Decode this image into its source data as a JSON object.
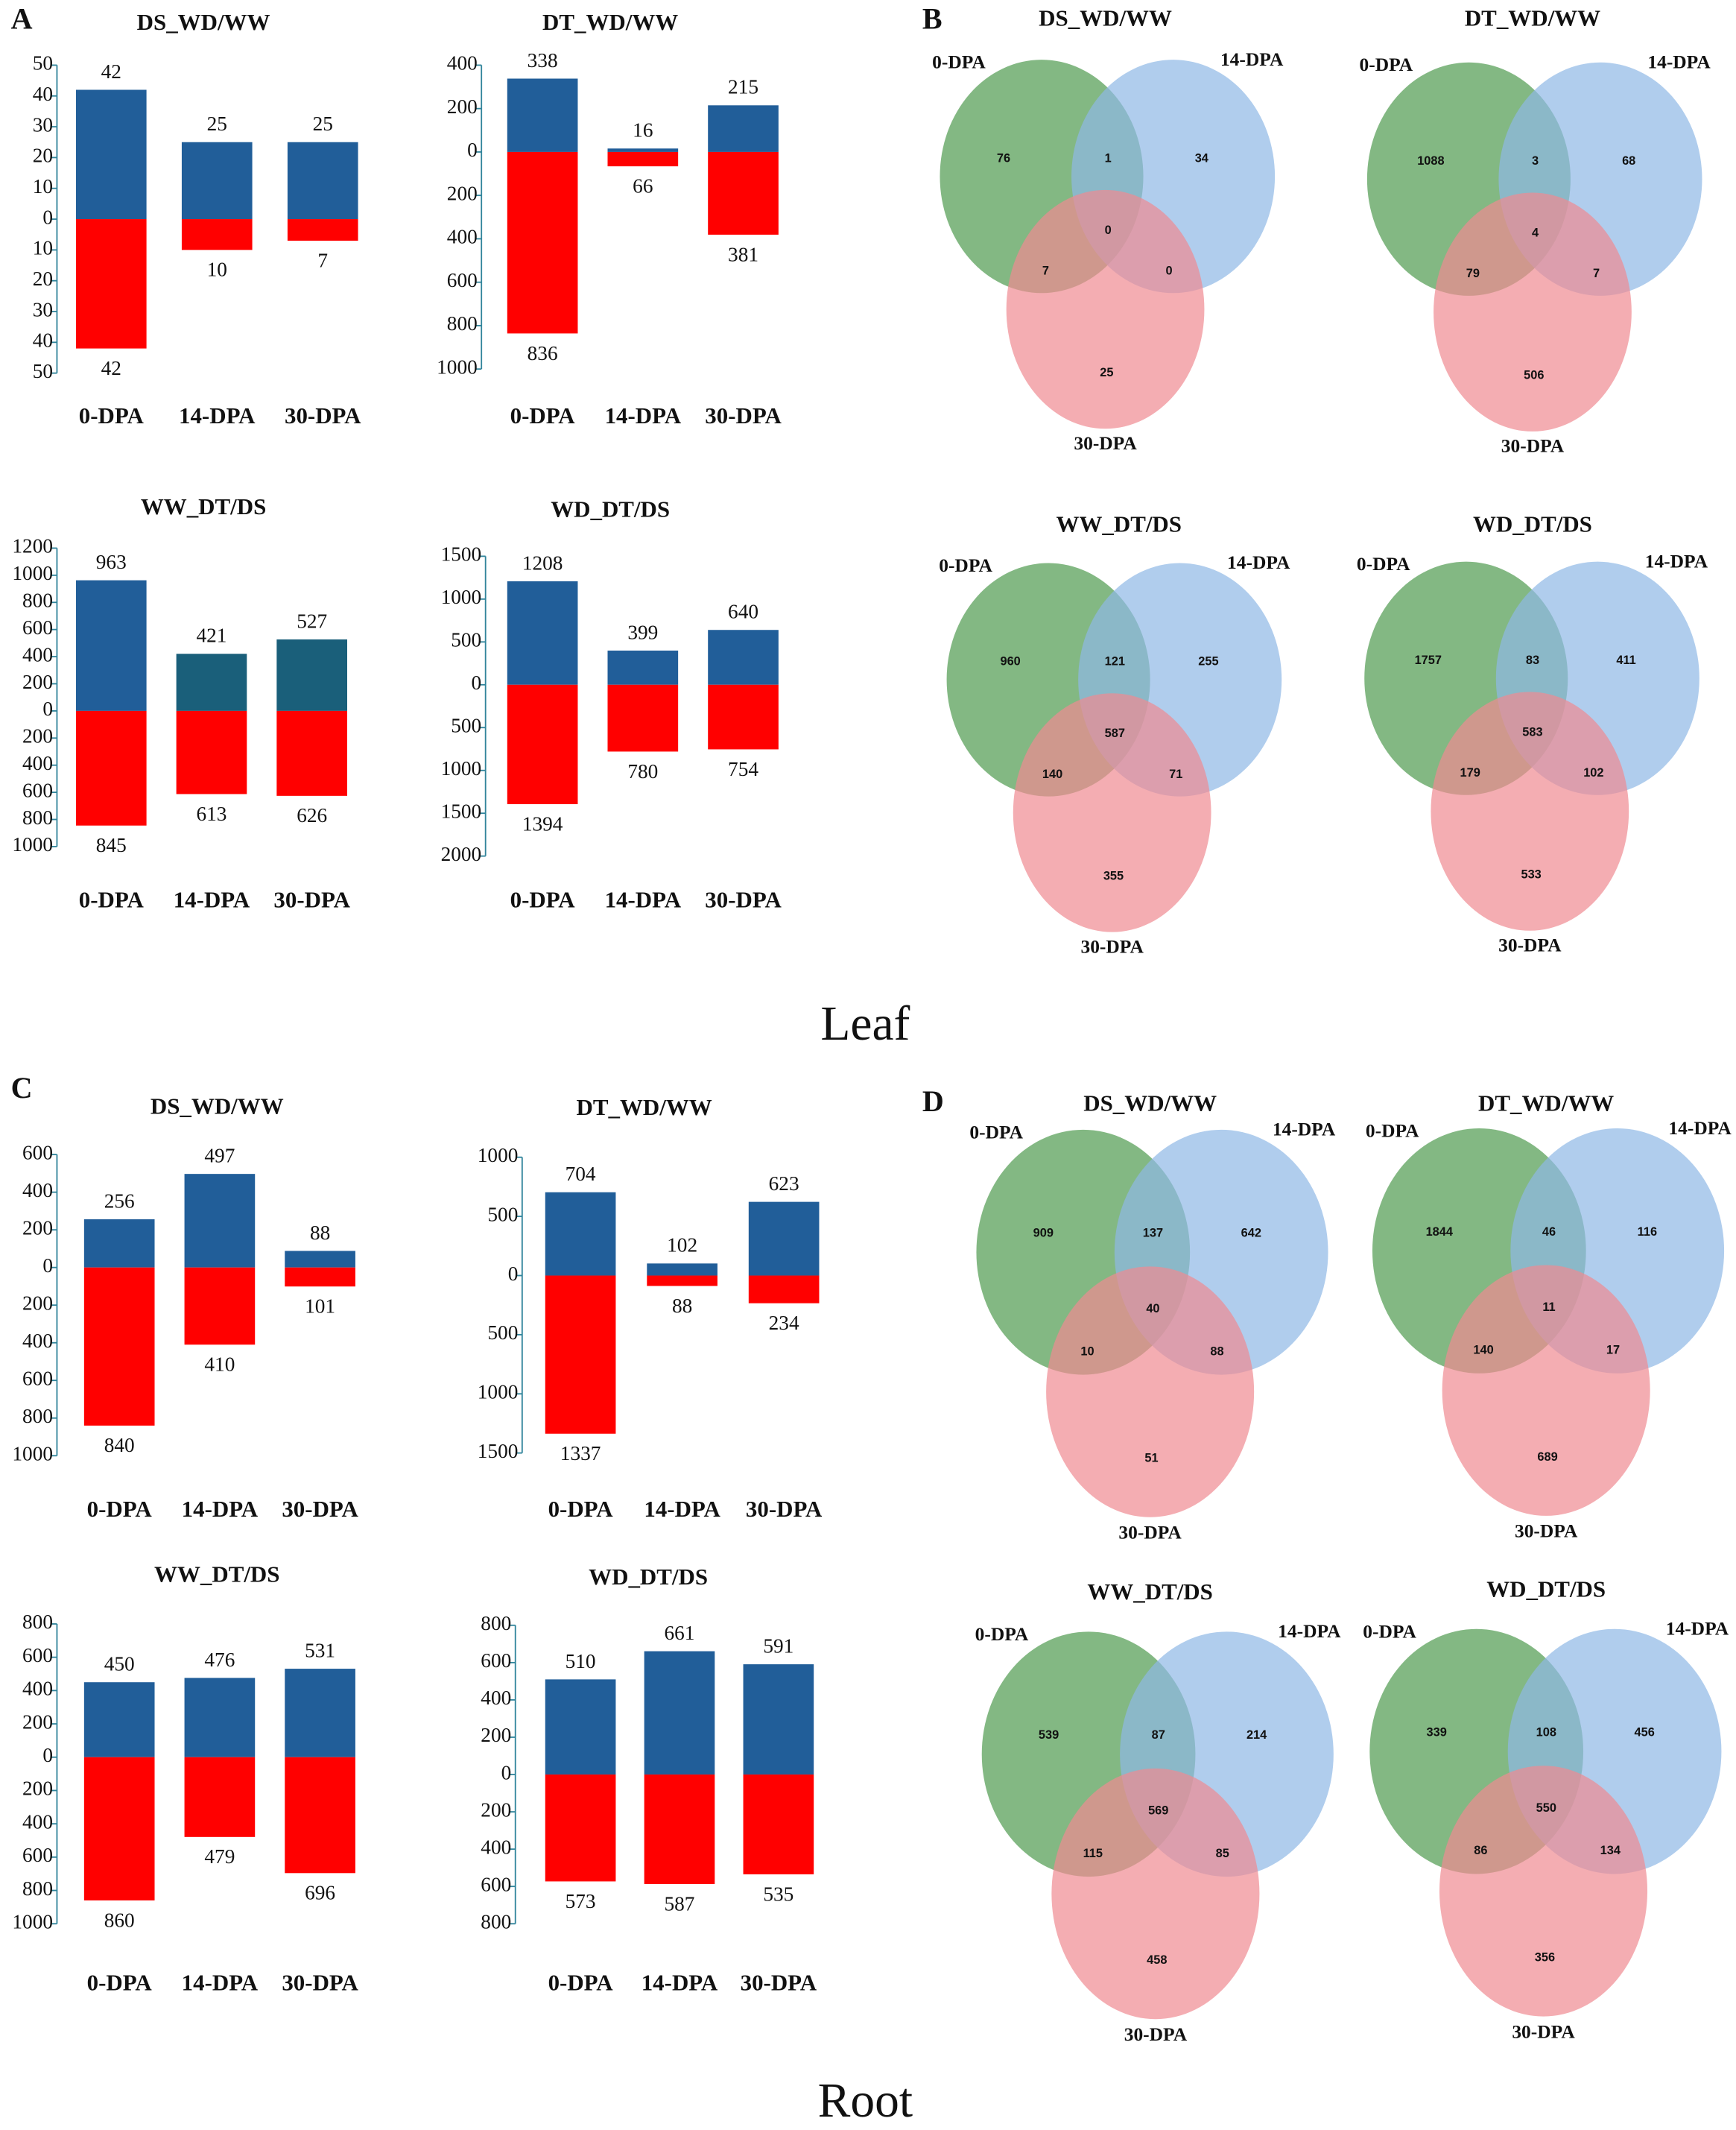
{
  "figure": {
    "panel_labels": [
      "A",
      "B",
      "C",
      "D"
    ],
    "tissue_labels": [
      "Leaf",
      "Root"
    ]
  },
  "chart_data": [
    {
      "type": "bar",
      "title": "DS_WD/WW",
      "categories": [
        "0-DPA",
        "14-DPA",
        "30-DPA"
      ],
      "series": [
        {
          "color": "#215e99",
          "values": [
            42,
            25,
            25
          ]
        },
        {
          "color": "#ff0000",
          "values": [
            -42,
            -10,
            -7
          ],
          "value_labels": [
            "42",
            "10",
            "7"
          ]
        }
      ],
      "ylim": [
        -50,
        50
      ],
      "yticks": [
        {
          "value": -50,
          "label": "50"
        },
        {
          "value": -40,
          "label": "40"
        },
        {
          "value": -30,
          "label": "30"
        },
        {
          "value": -20,
          "label": "20"
        },
        {
          "value": -10,
          "label": "10"
        },
        0,
        10,
        20,
        30,
        40,
        50
      ]
    },
    {
      "type": "bar",
      "title": "DT_WD/WW",
      "categories": [
        "0-DPA",
        "14-DPA",
        "30-DPA"
      ],
      "series": [
        {
          "color": "#215e99",
          "values": [
            338,
            16,
            215
          ]
        },
        {
          "color": "#ff0000",
          "values": [
            -836,
            -66,
            -381
          ],
          "value_labels": [
            "836",
            "66",
            "381"
          ]
        }
      ],
      "ylim": [
        -1000,
        400
      ],
      "yticks": [
        {
          "value": -1000,
          "label": "1000"
        },
        {
          "value": -800,
          "label": "800"
        },
        {
          "value": -600,
          "label": "600"
        },
        {
          "value": -400,
          "label": "400"
        },
        {
          "value": -200,
          "label": "200"
        },
        0,
        200,
        400
      ]
    },
    {
      "type": "bar",
      "title": "WW_DT/DS",
      "categories": [
        "0-DPA",
        "14-DPA",
        "30-DPA"
      ],
      "series": [
        {
          "colors": [
            "#215e99",
            "#1a5f7a",
            "#1a5f7a"
          ],
          "values": [
            963,
            421,
            527
          ]
        },
        {
          "color": "#ff0000",
          "values": [
            -845,
            -613,
            -626
          ],
          "value_labels": [
            "845",
            "613",
            "626"
          ]
        }
      ],
      "ylim": [
        -1000,
        1200
      ],
      "yticks": [
        {
          "value": -1000,
          "label": "1000"
        },
        {
          "value": -800,
          "label": "800"
        },
        {
          "value": -600,
          "label": "600"
        },
        {
          "value": -400,
          "label": "400"
        },
        {
          "value": -200,
          "label": "200"
        },
        0,
        200,
        400,
        600,
        800,
        1000,
        1200
      ]
    },
    {
      "type": "bar",
      "title": "WD_DT/DS",
      "categories": [
        "0-DPA",
        "14-DPA",
        "30-DPA"
      ],
      "series": [
        {
          "color": "#215e99",
          "values": [
            1208,
            399,
            640
          ]
        },
        {
          "color": "#ff0000",
          "values": [
            -1394,
            -780,
            -754
          ],
          "value_labels": [
            "1394",
            "780",
            "754"
          ]
        }
      ],
      "ylim": [
        -2000,
        1500
      ],
      "yticks": [
        {
          "value": -2000,
          "label": "2000"
        },
        {
          "value": -1500,
          "label": "1500"
        },
        {
          "value": -1000,
          "label": "1000"
        },
        {
          "value": -500,
          "label": "500"
        },
        0,
        500,
        1000,
        1500
      ]
    },
    {
      "type": "venn",
      "title": "DS_WD/WW",
      "sets": [
        "0-DPA",
        "14-DPA",
        "30-DPA"
      ],
      "colors": [
        "#4e9a4e",
        "#8fb8e6",
        "#f08a92"
      ],
      "values": [
        76,
        1,
        34,
        0,
        7,
        0,
        25
      ]
    },
    {
      "type": "venn",
      "title": "DT_WD/WW",
      "sets": [
        "0-DPA",
        "14-DPA",
        "30-DPA"
      ],
      "colors": [
        "#4e9a4e",
        "#8fb8e6",
        "#f08a92"
      ],
      "values": [
        1088,
        3,
        68,
        4,
        79,
        7,
        506
      ]
    },
    {
      "type": "venn",
      "title": "WW_DT/DS",
      "sets": [
        "0-DPA",
        "14-DPA",
        "30-DPA"
      ],
      "colors": [
        "#4e9a4e",
        "#8fb8e6",
        "#f08a92"
      ],
      "values": [
        960,
        121,
        255,
        587,
        140,
        71,
        355
      ]
    },
    {
      "type": "venn",
      "title": "WD_DT/DS",
      "sets": [
        "0-DPA",
        "14-DPA",
        "30-DPA"
      ],
      "colors": [
        "#4e9a4e",
        "#8fb8e6",
        "#f08a92"
      ],
      "values": [
        1757,
        83,
        411,
        583,
        179,
        102,
        533
      ]
    },
    {
      "type": "bar",
      "title": "DS_WD/WW",
      "categories": [
        "0-DPA",
        "14-DPA",
        "30-DPA"
      ],
      "series": [
        {
          "color": "#215e99",
          "values": [
            256,
            497,
            88
          ]
        },
        {
          "color": "#ff0000",
          "values": [
            -840,
            -410,
            -101
          ],
          "value_labels": [
            "840",
            "410",
            "101"
          ]
        }
      ],
      "ylim": [
        -1000,
        600
      ],
      "yticks": [
        {
          "value": -1000,
          "label": "1000"
        },
        {
          "value": -800,
          "label": "800"
        },
        {
          "value": -600,
          "label": "600"
        },
        {
          "value": -400,
          "label": "400"
        },
        {
          "value": -200,
          "label": "200"
        },
        0,
        200,
        400,
        600
      ]
    },
    {
      "type": "bar",
      "title": "DT_WD/WW",
      "categories": [
        "0-DPA",
        "14-DPA",
        "30-DPA"
      ],
      "series": [
        {
          "color": "#215e99",
          "values": [
            704,
            102,
            623
          ]
        },
        {
          "color": "#ff0000",
          "values": [
            -1337,
            -88,
            -234
          ],
          "value_labels": [
            "1337",
            "88",
            "234"
          ]
        }
      ],
      "ylim": [
        -1500,
        1000
      ],
      "yticks": [
        {
          "value": -1500,
          "label": "1500"
        },
        {
          "value": -1000,
          "label": "1000"
        },
        {
          "value": -500,
          "label": "500"
        },
        0,
        500,
        1000
      ]
    },
    {
      "type": "bar",
      "title": "WW_DT/DS",
      "categories": [
        "0-DPA",
        "14-DPA",
        "30-DPA"
      ],
      "series": [
        {
          "color": "#215e99",
          "values": [
            450,
            476,
            531
          ]
        },
        {
          "color": "#ff0000",
          "values": [
            -860,
            -479,
            -696
          ],
          "value_labels": [
            "860",
            "479",
            "696"
          ]
        }
      ],
      "ylim": [
        -1000,
        800
      ],
      "yticks": [
        {
          "value": -1000,
          "label": "1000"
        },
        {
          "value": -800,
          "label": "800"
        },
        {
          "value": -600,
          "label": "600"
        },
        {
          "value": -400,
          "label": "400"
        },
        {
          "value": -200,
          "label": "200"
        },
        0,
        200,
        400,
        600,
        800
      ]
    },
    {
      "type": "bar",
      "title": "WD_DT/DS",
      "categories": [
        "0-DPA",
        "14-DPA",
        "30-DPA"
      ],
      "series": [
        {
          "color": "#215e99",
          "values": [
            510,
            661,
            591
          ]
        },
        {
          "color": "#ff0000",
          "values": [
            -573,
            -587,
            -535
          ],
          "value_labels": [
            "573",
            "587",
            "535"
          ]
        }
      ],
      "ylim": [
        -800,
        800
      ],
      "yticks": [
        {
          "value": -800,
          "label": "800"
        },
        {
          "value": -600,
          "label": "600"
        },
        {
          "value": -400,
          "label": "400"
        },
        {
          "value": -200,
          "label": "200"
        },
        0,
        200,
        400,
        600,
        800
      ]
    },
    {
      "type": "venn",
      "title": "DS_WD/WW",
      "sets": [
        "0-DPA",
        "14-DPA",
        "30-DPA"
      ],
      "colors": [
        "#4e9a4e",
        "#8fb8e6",
        "#f08a92"
      ],
      "values": [
        909,
        137,
        642,
        40,
        10,
        88,
        51
      ]
    },
    {
      "type": "venn",
      "title": "DT_WD/WW",
      "sets": [
        "0-DPA",
        "14-DPA",
        "30-DPA"
      ],
      "colors": [
        "#4e9a4e",
        "#8fb8e6",
        "#f08a92"
      ],
      "values": [
        1844,
        46,
        116,
        11,
        140,
        17,
        689
      ]
    },
    {
      "type": "venn",
      "title": "WW_DT/DS",
      "sets": [
        "0-DPA",
        "14-DPA",
        "30-DPA"
      ],
      "colors": [
        "#4e9a4e",
        "#8fb8e6",
        "#f08a92"
      ],
      "values": [
        539,
        87,
        214,
        569,
        115,
        85,
        458
      ]
    },
    {
      "type": "venn",
      "title": "WD_DT/DS",
      "sets": [
        "0-DPA",
        "14-DPA",
        "30-DPA"
      ],
      "colors": [
        "#4e9a4e",
        "#8fb8e6",
        "#f08a92"
      ],
      "values": [
        339,
        108,
        456,
        550,
        86,
        134,
        356
      ]
    }
  ]
}
